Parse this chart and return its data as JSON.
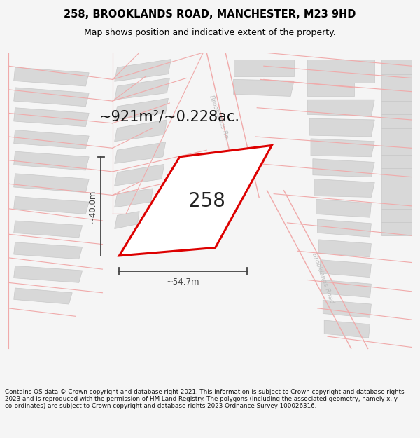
{
  "title": "258, BROOKLANDS ROAD, MANCHESTER, M23 9HD",
  "subtitle": "Map shows position and indicative extent of the property.",
  "area_label": "~921m²/~0.228ac.",
  "plot_number": "258",
  "width_label": "~54.7m",
  "height_label": "~40.0m",
  "footer": "Contains OS data © Crown copyright and database right 2021. This information is subject to Crown copyright and database rights 2023 and is reproduced with the permission of HM Land Registry. The polygons (including the associated geometry, namely x, y co-ordinates) are subject to Crown copyright and database rights 2023 Ordnance Survey 100026316.",
  "bg_color": "#f5f5f5",
  "map_bg": "#ffffff",
  "road_line_color": "#f0aaaa",
  "building_color": "#d8d8d8",
  "building_edge": "#c8c8c8",
  "plot_color": "#dd0000",
  "title_color": "#000000",
  "footer_color": "#111111",
  "dim_color": "#444444",
  "road_label_color": "#bbbbbb"
}
